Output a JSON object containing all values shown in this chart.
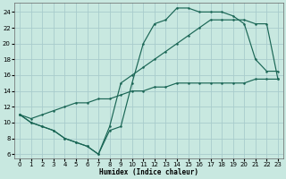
{
  "xlabel": "Humidex (Indice chaleur)",
  "bg_color": "#c8e8e0",
  "grid_color": "#a8cccc",
  "line_color": "#1a6655",
  "xlim": [
    -0.5,
    23.5
  ],
  "ylim": [
    5.5,
    25.2
  ],
  "yticks": [
    6,
    8,
    10,
    12,
    14,
    16,
    18,
    20,
    22,
    24
  ],
  "xticks": [
    0,
    1,
    2,
    3,
    4,
    5,
    6,
    7,
    8,
    9,
    10,
    11,
    12,
    13,
    14,
    15,
    16,
    17,
    18,
    19,
    20,
    21,
    22,
    23
  ],
  "curve1_x": [
    0,
    1,
    2,
    3,
    4,
    5,
    6,
    7,
    8,
    9,
    10,
    11,
    12,
    13,
    14,
    15,
    16,
    17,
    18,
    19,
    20,
    21,
    22,
    23
  ],
  "curve1_y": [
    11,
    10,
    9.5,
    9,
    8,
    7.5,
    7,
    6,
    9,
    9.5,
    15,
    20,
    22.5,
    23,
    24.5,
    24.5,
    24,
    24,
    24,
    23.5,
    22.5,
    18,
    16.5,
    16.5
  ],
  "curve2_x": [
    0,
    1,
    2,
    3,
    4,
    5,
    6,
    7,
    8,
    9,
    10,
    11,
    12,
    13,
    14,
    15,
    16,
    17,
    18,
    19,
    20,
    21,
    22,
    23
  ],
  "curve2_y": [
    11,
    10,
    9.5,
    9,
    8,
    7.5,
    7,
    6,
    9.5,
    15,
    16,
    17,
    18,
    19,
    20,
    21,
    22,
    23,
    23,
    23,
    23,
    22.5,
    22.5,
    15.5
  ],
  "curve3_x": [
    0,
    1,
    2,
    3,
    4,
    5,
    6,
    7,
    8,
    9,
    10,
    11,
    12,
    13,
    14,
    15,
    16,
    17,
    18,
    19,
    20,
    21,
    22,
    23
  ],
  "curve3_y": [
    11,
    10.5,
    11,
    11.5,
    12,
    12.5,
    12.5,
    13,
    13,
    13.5,
    14,
    14,
    14.5,
    14.5,
    15,
    15,
    15,
    15,
    15,
    15,
    15,
    15.5,
    15.5,
    15.5
  ]
}
